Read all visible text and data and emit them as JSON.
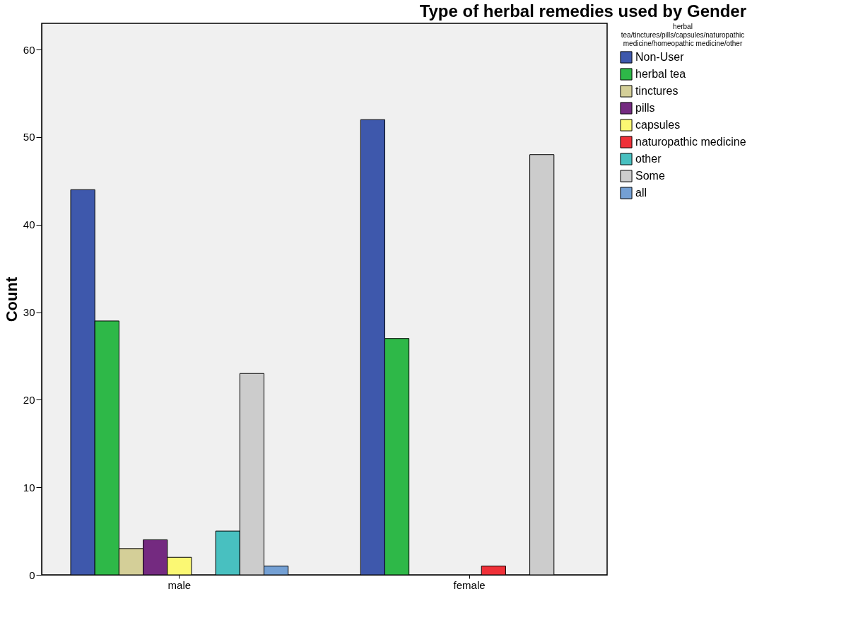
{
  "chart_data": {
    "type": "bar",
    "title": "Type of herbal remedies used by Gender",
    "ylabel": "Count",
    "legend_title": "herbal tea/tinctures/pills/capsules/naturopathic medicine/homeopathic medicine/other",
    "categories": [
      "male",
      "female"
    ],
    "series": [
      {
        "name": "Non-User",
        "color": "#3e58ac",
        "values": [
          44,
          52
        ]
      },
      {
        "name": "herbal tea",
        "color": "#2eb848",
        "values": [
          29,
          27
        ]
      },
      {
        "name": "tinctures",
        "color": "#d4cf98",
        "values": [
          3,
          null
        ]
      },
      {
        "name": "pills",
        "color": "#742a80",
        "values": [
          4,
          null
        ]
      },
      {
        "name": "capsules",
        "color": "#fbf873",
        "values": [
          2,
          null
        ]
      },
      {
        "name": "naturopathic medicine",
        "color": "#ef3038",
        "values": [
          null,
          1
        ]
      },
      {
        "name": "other",
        "color": "#48c0c0",
        "values": [
          5,
          null
        ]
      },
      {
        "name": "Some",
        "color": "#cccccc",
        "values": [
          23,
          48
        ]
      },
      {
        "name": "all",
        "color": "#74a0d4",
        "values": [
          1,
          null
        ]
      }
    ],
    "ylim": [
      0,
      63
    ],
    "yticks": [
      0,
      10,
      20,
      30,
      40,
      50,
      60
    ],
    "grid": false,
    "legend": "right"
  }
}
